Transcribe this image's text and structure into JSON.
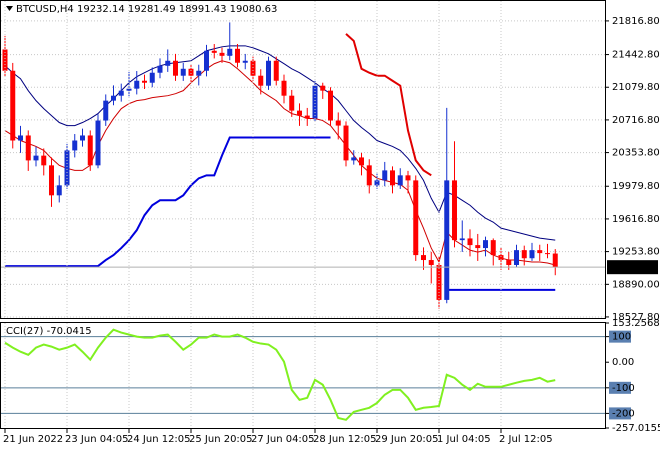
{
  "chart_data": [
    {
      "type": "candlestick",
      "title": "BTCUSD,H4  19232.14 19281.49 18991.43 19080.63",
      "categories": [
        "21 Jun 2022",
        null,
        null,
        null,
        null,
        null,
        null,
        null,
        "23 Jun 04:05",
        null,
        null,
        null,
        null,
        null,
        null,
        null,
        "24 Jun 12:05",
        null,
        null,
        null,
        null,
        null,
        null,
        null,
        "25 Jun 20:05",
        null,
        null,
        null,
        null,
        null,
        null,
        null,
        "27 Jun 04:05",
        null,
        null,
        null,
        null,
        null,
        null,
        null,
        "28 Jun 12:05",
        null,
        null,
        null,
        null,
        null,
        null,
        null,
        "29 Jun 20:05",
        null,
        null,
        null,
        null,
        null,
        null,
        null,
        "1 Jul 04:05",
        null,
        null,
        null,
        null,
        null,
        null,
        null,
        "2 Jul 12:05",
        null,
        null,
        null,
        null,
        null,
        null,
        null
      ],
      "open": [
        21500,
        21263,
        20488,
        20544,
        20267,
        20320,
        20212,
        19879,
        19990,
        20378,
        20488,
        20544,
        20212,
        20710,
        20931,
        20986,
        21042,
        21064,
        21152,
        21130,
        21241,
        21318,
        21374,
        21208,
        21285,
        21208,
        21263,
        21485,
        21462,
        21429,
        21507,
        21352,
        21374,
        21208,
        21097,
        21374,
        21152,
        20986,
        20820,
        20765,
        20732,
        21097,
        21042,
        20710,
        20654,
        20267,
        20300,
        20212,
        19990,
        20045,
        20156,
        19990,
        20101,
        20045,
        19215,
        19160,
        19105,
        18717,
        20045,
        19381,
        19400,
        19326,
        19293,
        19381,
        19215,
        19160,
        19105,
        19270,
        19180,
        19270,
        19237,
        19232.14
      ],
      "high": [
        21650,
        21350,
        20650,
        20600,
        20420,
        20400,
        20300,
        20100,
        20450,
        20560,
        20620,
        20600,
        20780,
        21000,
        21100,
        21120,
        21250,
        21260,
        21220,
        21300,
        21400,
        21500,
        21450,
        21350,
        21330,
        21330,
        21550,
        21560,
        21520,
        21800,
        21560,
        21450,
        21420,
        21280,
        21420,
        21420,
        21220,
        21050,
        20900,
        20850,
        21150,
        21130,
        21080,
        20800,
        20700,
        20380,
        20350,
        20280,
        20120,
        20250,
        20200,
        20180,
        20150,
        20100,
        19300,
        19250,
        19200,
        20850,
        20480,
        19600,
        19500,
        19450,
        19420,
        19400,
        19300,
        19250,
        19330,
        19320,
        19350,
        19330,
        19340,
        19281.49
      ],
      "low": [
        21200,
        20400,
        20350,
        20150,
        20200,
        20100,
        19750,
        19800,
        19950,
        20300,
        20420,
        20150,
        20180,
        20650,
        20880,
        20920,
        20980,
        21000,
        21060,
        21080,
        21180,
        21250,
        21150,
        21150,
        21130,
        21100,
        21200,
        21400,
        21350,
        21380,
        21300,
        21280,
        21150,
        21000,
        21050,
        21100,
        20900,
        20750,
        20650,
        20650,
        20700,
        20950,
        20650,
        20500,
        20200,
        20220,
        20100,
        19900,
        19950,
        19980,
        19900,
        19950,
        19900,
        19150,
        19050,
        18900,
        18620,
        18680,
        19300,
        19250,
        19200,
        19150,
        19200,
        19100,
        19050,
        19050,
        19080,
        19100,
        19150,
        19150,
        19180,
        18991.43
      ],
      "close": [
        21263,
        20488,
        20544,
        20267,
        20320,
        20212,
        19879,
        19990,
        20378,
        20488,
        20544,
        20212,
        20710,
        20931,
        20986,
        21042,
        21064,
        21152,
        21130,
        21241,
        21318,
        21374,
        21208,
        21285,
        21208,
        21263,
        21485,
        21462,
        21429,
        21507,
        21352,
        21374,
        21208,
        21097,
        21374,
        21152,
        20986,
        20820,
        20765,
        20732,
        21097,
        21042,
        20710,
        20654,
        20267,
        20300,
        20212,
        19990,
        20045,
        20156,
        19990,
        20101,
        20045,
        19215,
        19160,
        19105,
        18717,
        20045,
        19381,
        19400,
        19326,
        19293,
        19381,
        19215,
        19160,
        19105,
        19270,
        19180,
        19270,
        19237,
        19232.14,
        19080.63
      ],
      "up_color": "#1530d0",
      "down_color": "#ff0000",
      "overlays": [
        {
          "color": "#000080",
          "width": 1,
          "values": [
            21318,
            21241,
            21175,
            21042,
            20931,
            20842,
            20765,
            20688,
            20654,
            20654,
            20688,
            20732,
            20787,
            20876,
            20953,
            21042,
            21130,
            21197,
            21241,
            21285,
            21318,
            21341,
            21352,
            21363,
            21374,
            21429,
            21485,
            21507,
            21529,
            21540,
            21540,
            21540,
            21518,
            21485,
            21451,
            21396,
            21341,
            21285,
            21241,
            21186,
            21130,
            21064,
            21009,
            20931,
            20820,
            20710,
            20632,
            20566,
            20488,
            20455,
            20422,
            20378,
            20289,
            20178,
            20045,
            19846,
            19691,
            19913,
            19879,
            19824,
            19769,
            19691,
            19625,
            19581,
            19514,
            19492,
            19470,
            19448,
            19426,
            19403,
            19392,
            19381
          ]
        },
        {
          "color": "#d00000",
          "width": 1,
          "values": [
            20599,
            20544,
            20488,
            20455,
            20422,
            20378,
            20289,
            20212,
            20178,
            20156,
            20156,
            20212,
            20433,
            20599,
            20732,
            20842,
            20898,
            20931,
            20942,
            20964,
            20975,
            20986,
            21008,
            21042,
            21130,
            21208,
            21285,
            21341,
            21374,
            21352,
            21285,
            21208,
            21130,
            21042,
            20986,
            20931,
            20842,
            20787,
            20765,
            20732,
            20732,
            20710,
            20654,
            20544,
            20433,
            20322,
            20212,
            20134,
            20068,
            20045,
            20023,
            20001,
            19935,
            19713,
            19514,
            19293,
            19138,
            19470,
            19381,
            19326,
            19270,
            19248,
            19270,
            19215,
            19182,
            19160,
            19160,
            19149,
            19138,
            19138,
            19127,
            19105
          ]
        },
        {
          "color": "#0000dd",
          "width": 2,
          "values": [
            19093,
            19093,
            19093,
            19093,
            19093,
            19093,
            19093,
            19093,
            19093,
            19093,
            19093,
            19093,
            19093,
            19160,
            19215,
            19293,
            19381,
            19492,
            19658,
            19769,
            19824,
            19824,
            19824,
            19879,
            19990,
            20068,
            20101,
            20101,
            20322,
            20521,
            20521,
            20521,
            20521,
            20521,
            20521,
            20521,
            20521,
            20521,
            20521,
            20521,
            20521,
            20521,
            20521,
            null,
            null,
            null,
            null,
            null,
            null,
            null,
            null,
            null,
            null,
            null,
            null,
            null,
            null,
            18828,
            18828,
            18828,
            18828,
            18828,
            18828,
            18828,
            18828,
            18828,
            18828,
            18828,
            18828,
            18828,
            18828,
            18828
          ]
        },
        {
          "color": "#e00000",
          "width": 2,
          "values": [
            null,
            null,
            null,
            null,
            null,
            null,
            null,
            null,
            null,
            null,
            null,
            null,
            null,
            null,
            null,
            null,
            null,
            null,
            null,
            null,
            null,
            null,
            null,
            null,
            null,
            null,
            null,
            null,
            null,
            null,
            null,
            null,
            null,
            null,
            null,
            null,
            null,
            null,
            null,
            null,
            null,
            null,
            null,
            null,
            21673,
            21595,
            21285,
            21241,
            21208,
            21208,
            21152,
            21097,
            20599,
            20267,
            20156,
            20101,
            null,
            null,
            null,
            null,
            null,
            null,
            null,
            null,
            null,
            null,
            null,
            null,
            null,
            null,
            null,
            null
          ]
        }
      ],
      "ylim": [
        18516,
        22038
      ],
      "yticks": [
        {
          "value": 21816.8,
          "label": "21816.80"
        },
        {
          "value": 21442.8,
          "label": "21442.80"
        },
        {
          "value": 21079.8,
          "label": "21079.80"
        },
        {
          "value": 20716.8,
          "label": "20716.80"
        },
        {
          "value": 20353.8,
          "label": "20353.80"
        },
        {
          "value": 19979.8,
          "label": "19979.80"
        },
        {
          "value": 19616.8,
          "label": "19616.80"
        },
        {
          "value": 19253.8,
          "label": "19253.80"
        },
        {
          "value": 18890,
          "label": "18890.00"
        },
        {
          "value": 18527.8,
          "label": "18527.80"
        }
      ],
      "grid": true
    },
    {
      "type": "line",
      "title": "CCI(27) -70.0415",
      "color": "#80f020",
      "values": [
        76,
        57,
        41,
        29,
        57,
        69,
        61,
        49,
        57,
        69,
        41,
        10,
        57,
        96,
        127,
        116,
        108,
        100,
        96,
        96,
        104,
        108,
        80,
        49,
        69,
        96,
        96,
        108,
        100,
        100,
        108,
        96,
        80,
        73,
        69,
        49,
        2,
        -108,
        -147,
        -139,
        -69,
        -88,
        -147,
        -218,
        -225,
        -194,
        -186,
        -178,
        -159,
        -127,
        -108,
        -108,
        -139,
        -186,
        -178,
        -175,
        -171,
        -49,
        -61,
        -88,
        -108,
        -84,
        -96,
        -96,
        -96,
        -88,
        -80,
        -73,
        -69,
        -61,
        -76,
        -70.0415
      ],
      "ylim": [
        -257.0155,
        153.2568
      ],
      "yticks": [
        153.2568,
        100,
        {
          "value": 0,
          "label": "0.00"
        },
        -100,
        -200,
        -257.0155
      ],
      "levels": [
        100,
        -100,
        -200
      ]
    }
  ]
}
